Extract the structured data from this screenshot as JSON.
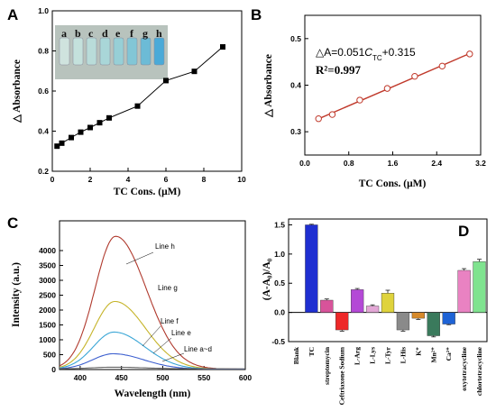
{
  "colors": {
    "panelB_line": "#c0392b",
    "panelB_marker_edge": "#c0392b",
    "panelC_h": "#b03a2e",
    "panelC_g": "#c6b42a",
    "panelC_f": "#3aa6d6",
    "panelC_e": "#3c5fcf",
    "panelC_ad": "#666666",
    "bar_colors": [
      "#1f2fd1",
      "#d8539a",
      "#ee2828",
      "#b449d6",
      "#e3a7d6",
      "#dfd33c",
      "#8a8a8a",
      "#d6892a",
      "#3a7a5c",
      "#1e63d6",
      "#e982c2",
      "#7fe38f"
    ]
  },
  "chart_data": [
    {
      "panel": "A",
      "type": "line",
      "x": [
        0.25,
        0.5,
        1.0,
        1.5,
        2.0,
        2.5,
        3.0,
        4.5,
        6.0,
        7.5,
        9.0
      ],
      "y": [
        0.325,
        0.34,
        0.368,
        0.395,
        0.418,
        0.442,
        0.466,
        0.525,
        0.652,
        0.698,
        0.82
      ],
      "xlabel": "TC Cons. (μM)",
      "ylabel": "△ Absorbance",
      "xlim": [
        0,
        10
      ],
      "ylim": [
        0.2,
        1.0
      ],
      "xticks": [
        "0",
        "2",
        "4",
        "6",
        "8",
        "10"
      ],
      "yticks": [
        "0.2",
        "0.4",
        "0.6",
        "0.8",
        "1.0"
      ],
      "inset_labels": [
        "a",
        "b",
        "c",
        "d",
        "e",
        "f",
        "g",
        "h"
      ],
      "marker": "square"
    },
    {
      "panel": "B",
      "type": "scatter",
      "x": [
        0.25,
        0.5,
        1.0,
        1.5,
        2.0,
        2.5,
        3.0
      ],
      "y": [
        0.328,
        0.337,
        0.368,
        0.393,
        0.419,
        0.441,
        0.467
      ],
      "fit": {
        "slope": 0.051,
        "intercept": 0.315
      },
      "equation_prefix": "△A=0.051",
      "equation_c": "C",
      "equation_sub": "TC",
      "equation_suffix": "+0.315",
      "r2": "R²=0.997",
      "xlabel": "TC Cons. (μM)",
      "ylabel": "△ Absorbance",
      "xlim": [
        0.0,
        3.2
      ],
      "ylim": [
        0.25,
        0.55
      ],
      "xticks": [
        "0.0",
        "0.8",
        "1.6",
        "2.4",
        "3.2"
      ],
      "yticks": [
        "0.3",
        "0.4",
        "0.5"
      ],
      "marker": "circle-open"
    },
    {
      "panel": "C",
      "type": "line",
      "xlabel": "Wavelength (nm)",
      "ylabel": "Intensity (a.u.)",
      "xlim": [
        375,
        600
      ],
      "ylim": [
        0,
        5000
      ],
      "xticks": [
        "400",
        "450",
        "500",
        "550",
        "600"
      ],
      "yticks": [
        "0",
        "500",
        "1000",
        "1500",
        "2000",
        "2500",
        "3000",
        "3500",
        "4000"
      ],
      "series": [
        {
          "name": "Line h",
          "peak_x": 443,
          "peak_y": 4480
        },
        {
          "name": "Line g",
          "peak_x": 442,
          "peak_y": 2290
        },
        {
          "name": "Line f",
          "peak_x": 441,
          "peak_y": 1260
        },
        {
          "name": "Line e",
          "peak_x": 440,
          "peak_y": 530
        },
        {
          "name": "Line a~d",
          "peak_x": 440,
          "peak_y": 80
        }
      ]
    },
    {
      "panel": "D",
      "type": "bar",
      "categories": [
        "Blank",
        "TC",
        "streptomycin",
        "Ceftriaxone Sodium",
        "L-Arg",
        "L-Lys",
        "L-Tyr",
        "L-His",
        "K⁺",
        "Mn²⁺",
        "Ca²⁺",
        "oxytetracycline",
        "chlortetracycline"
      ],
      "values": [
        0,
        1.5,
        0.21,
        -0.3,
        0.39,
        0.11,
        0.33,
        -0.3,
        -0.1,
        -0.4,
        -0.2,
        0.72,
        0.87
      ],
      "errors": [
        0,
        0.01,
        0.02,
        0.02,
        0.02,
        0.02,
        0.05,
        0.02,
        0.02,
        0.02,
        0.01,
        0.03,
        0.04
      ],
      "ylabel": "(A-A₀)/A₀",
      "ylim": [
        -0.5,
        1.6
      ],
      "yticks": [
        "-0.5",
        "0.0",
        "0.5",
        "1.0",
        "1.5"
      ]
    }
  ],
  "panel_letters": [
    "A",
    "B",
    "C",
    "D"
  ]
}
